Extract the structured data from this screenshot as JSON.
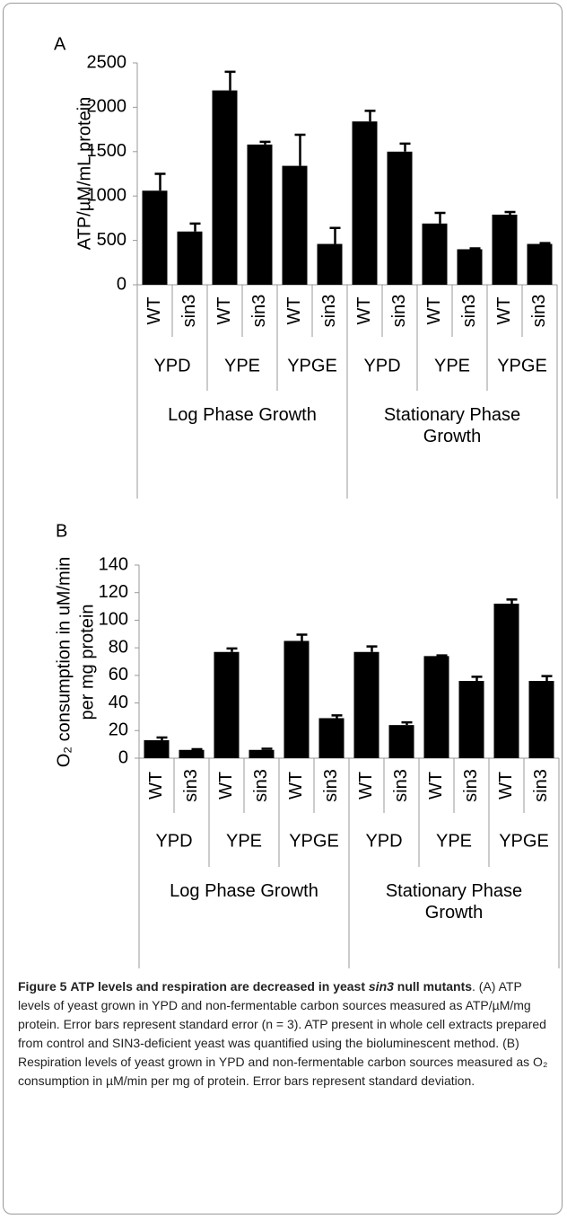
{
  "chart_data": [
    {
      "type": "bar",
      "panel_label": "A",
      "ylabel": [
        "ATP/µM/mL protein"
      ],
      "categories": [
        "WT",
        "sin3",
        "WT",
        "sin3",
        "WT",
        "sin3",
        "WT",
        "sin3",
        "WT",
        "sin3",
        "WT",
        "sin3"
      ],
      "groups": [
        "YPD",
        "YPE",
        "YPGE",
        "YPD",
        "YPE",
        "YPGE"
      ],
      "supergroups": [
        "Log Phase Growth",
        "Stationary Phase Growth"
      ],
      "values": [
        1060,
        600,
        2190,
        1580,
        1340,
        460,
        1840,
        1500,
        690,
        400,
        790,
        460
      ],
      "errors": [
        190,
        90,
        210,
        30,
        350,
        180,
        120,
        90,
        120,
        10,
        30,
        10
      ],
      "color": "#000000",
      "ylim": [
        0,
        2500
      ],
      "yticks": [
        0,
        500,
        1000,
        1500,
        2000,
        2500
      ]
    },
    {
      "type": "bar",
      "panel_label": "B",
      "ylabel": [
        "O₂ consumption in uM/min",
        "per mg protein"
      ],
      "categories": [
        "WT",
        "sin3",
        "WT",
        "sin3",
        "WT",
        "sin3",
        "WT",
        "sin3",
        "WT",
        "sin3",
        "WT",
        "sin3"
      ],
      "groups": [
        "YPD",
        "YPE",
        "YPGE",
        "YPD",
        "YPE",
        "YPGE"
      ],
      "supergroups": [
        "Log Phase Growth",
        "Stationary Phase Growth"
      ],
      "values": [
        13,
        6,
        77,
        6,
        85,
        29,
        77,
        24,
        74,
        56,
        112,
        56
      ],
      "errors": [
        2,
        0.5,
        2.5,
        0.8,
        4.5,
        2,
        4,
        2,
        0.5,
        3,
        3,
        3.5
      ],
      "color": "#000000",
      "ylim": [
        0,
        140
      ],
      "yticks": [
        0,
        20,
        40,
        60,
        80,
        100,
        120,
        140
      ]
    }
  ],
  "caption": {
    "label": "Figure 5",
    "title_start": "ATP levels and respiration are decreased in yeast ",
    "title_italic": "sin3",
    "title_end": " null mutants",
    "text": ". (A) ATP levels of yeast grown in YPD and non-fermentable carbon sources measured as ATP/µM/mg protein. Error bars represent standard error (n = 3). ATP present in whole cell extracts prepared from control and SIN3-deficient yeast was quantified using the bioluminescent method. (B) Respiration levels of yeast grown in YPD and non-fermentable carbon sources measured as O₂ consumption in µM/min per mg of protein. Error bars represent standard deviation."
  }
}
